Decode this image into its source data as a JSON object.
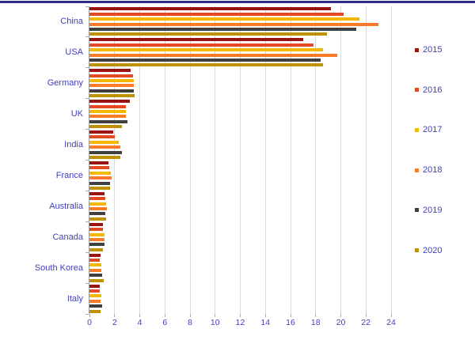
{
  "page": {
    "background": "#ffffff",
    "top_border_color": "#2A2A8F",
    "axis_text_color": "#4040BF",
    "gridline_color": "#D8D8D8",
    "axis_line_color": "#9E9E9E"
  },
  "chart_data": {
    "type": "bar",
    "orientation": "horizontal",
    "title": "",
    "xlabel": "",
    "ylabel": "",
    "categories": [
      "China",
      "USA",
      "Germany",
      "UK",
      "India",
      "France",
      "Australia",
      "Canada",
      "South Korea",
      "Italy"
    ],
    "series": [
      {
        "name": "2015",
        "color": "#9B1414",
        "values": [
          19.2,
          17.0,
          3.3,
          3.2,
          1.9,
          1.5,
          1.2,
          1.1,
          0.9,
          0.85
        ]
      },
      {
        "name": "2016",
        "color": "#E44A21",
        "values": [
          20.2,
          17.8,
          3.45,
          2.9,
          2.0,
          1.6,
          1.25,
          1.1,
          0.85,
          0.8
        ]
      },
      {
        "name": "2017",
        "color": "#F5B800",
        "values": [
          21.5,
          18.6,
          3.55,
          2.9,
          2.3,
          1.7,
          1.35,
          1.2,
          0.95,
          0.95
        ]
      },
      {
        "name": "2018",
        "color": "#FA7C28",
        "values": [
          23.0,
          19.7,
          3.55,
          2.9,
          2.45,
          1.75,
          1.4,
          1.2,
          0.95,
          0.9
        ]
      },
      {
        "name": "2019",
        "color": "#404040",
        "values": [
          21.2,
          18.4,
          3.5,
          3.0,
          2.6,
          1.65,
          1.25,
          1.2,
          1.0,
          1.0
        ]
      },
      {
        "name": "2020",
        "color": "#BF9000",
        "values": [
          18.9,
          18.6,
          3.6,
          2.6,
          2.45,
          1.65,
          1.3,
          1.1,
          1.15,
          0.9
        ]
      }
    ],
    "xlim": [
      0,
      24
    ],
    "xticks": [
      0,
      2,
      4,
      6,
      8,
      10,
      12,
      14,
      16,
      18,
      20,
      22,
      24
    ],
    "grid": "vertical",
    "legend_position": "right"
  }
}
